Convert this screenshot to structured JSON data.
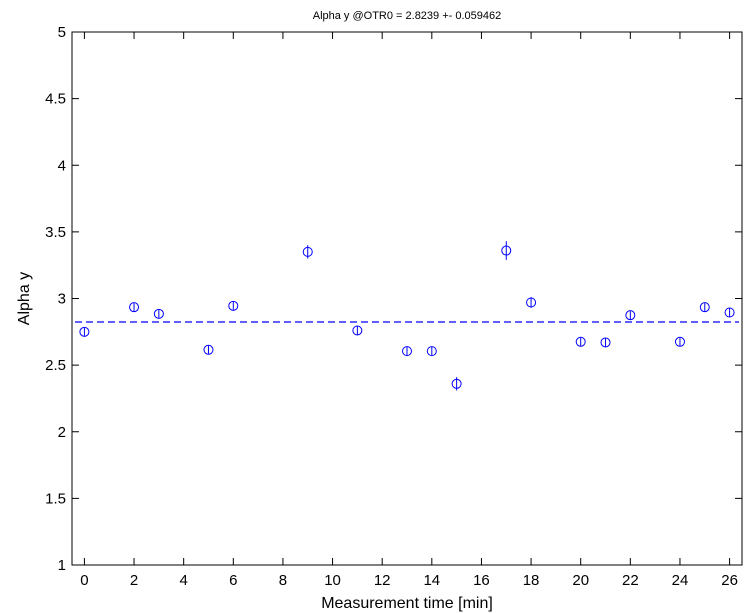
{
  "chart_data": {
    "type": "scatter",
    "title": "Alpha y @OTR0 = 2.8239 +- 0.059462",
    "xlabel": "Measurement time [min]",
    "ylabel": "Alpha y",
    "xlim": [
      -0.5,
      26.5
    ],
    "ylim": [
      1,
      5
    ],
    "xticks": [
      "0",
      "2",
      "4",
      "6",
      "8",
      "10",
      "12",
      "14",
      "16",
      "18",
      "20",
      "22",
      "24",
      "26"
    ],
    "yticks": [
      "1",
      "1.5",
      "2",
      "2.5",
      "3",
      "3.5",
      "4",
      "4.5",
      "5"
    ],
    "grid": false,
    "series": [
      {
        "color": "#0000ff",
        "marker": "circle",
        "x": [
          0,
          2,
          3,
          5,
          6,
          9,
          11,
          13,
          14,
          15,
          17,
          18,
          20,
          21,
          22,
          24,
          25,
          26
        ],
        "y": [
          2.75,
          2.935,
          2.885,
          2.615,
          2.945,
          3.35,
          2.76,
          2.605,
          2.605,
          2.36,
          3.36,
          2.97,
          2.675,
          2.67,
          2.875,
          2.675,
          2.935,
          2.895
        ],
        "err": [
          0.03,
          0.03,
          0.03,
          0.03,
          0.03,
          0.05,
          0.03,
          0.03,
          0.03,
          0.05,
          0.07,
          0.04,
          0.03,
          0.03,
          0.03,
          0.03,
          0.03,
          0.03
        ]
      }
    ],
    "reference_lines": [
      {
        "y": 2.8239,
        "style": "dashed",
        "color": "#0000ff"
      }
    ]
  }
}
